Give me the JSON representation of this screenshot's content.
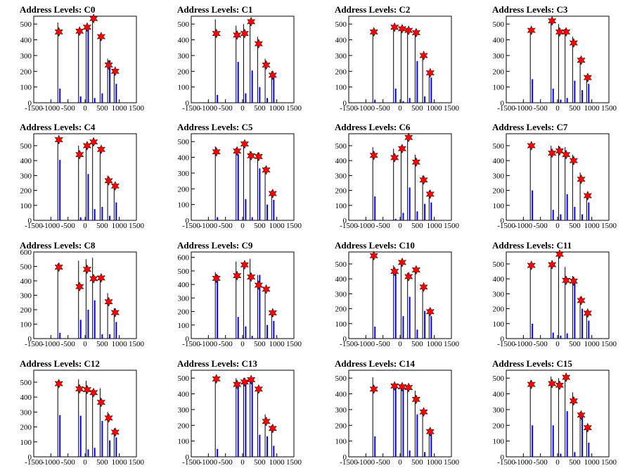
{
  "chart_data": [
    {
      "type": "bar",
      "title": "Address Levels: C0",
      "ylim": [
        0,
        550
      ],
      "yticks": [
        0,
        100,
        200,
        300,
        400,
        500
      ],
      "xlim": [
        -1500,
        1500
      ],
      "xticks": [
        -1500,
        -1000,
        -500,
        0,
        500,
        1000,
        1500
      ],
      "peaks": [
        {
          "x": -766,
          "black": 510,
          "blue": 90,
          "star": 450
        },
        {
          "x": -160,
          "black": 470,
          "blue": 40,
          "star": 455
        },
        {
          "x": 60,
          "black": 480,
          "blue": 470,
          "star": 480
        },
        {
          "x": 250,
          "black": 545,
          "blue": 30,
          "star": 535
        },
        {
          "x": 470,
          "black": 425,
          "blue": 60,
          "star": 420
        },
        {
          "x": 690,
          "black": 280,
          "blue": 270,
          "star": 240
        },
        {
          "x": 880,
          "black": 200,
          "blue": 120,
          "star": 200
        }
      ]
    },
    {
      "type": "bar",
      "title": "Address Levels: C1",
      "ylim": [
        0,
        550
      ],
      "yticks": [
        0,
        100,
        200,
        300,
        400,
        500
      ],
      "xlim": [
        -1500,
        1500
      ],
      "xticks": [
        -1500,
        -1000,
        -500,
        0,
        500,
        1000,
        1500
      ],
      "peaks": [
        {
          "x": -766,
          "black": 530,
          "blue": 50,
          "star": 440
        },
        {
          "x": -160,
          "black": 490,
          "blue": 260,
          "star": 430
        },
        {
          "x": 60,
          "black": 500,
          "blue": 60,
          "star": 440
        },
        {
          "x": 250,
          "black": 520,
          "blue": 205,
          "star": 515
        },
        {
          "x": 470,
          "black": 420,
          "blue": 100,
          "star": 375
        },
        {
          "x": 690,
          "black": 280,
          "blue": 30,
          "star": 240
        },
        {
          "x": 880,
          "black": 200,
          "blue": 170,
          "star": 175
        }
      ]
    },
    {
      "type": "bar",
      "title": "Address Levels: C2",
      "ylim": [
        0,
        550
      ],
      "yticks": [
        0,
        100,
        200,
        300,
        400,
        500
      ],
      "xlim": [
        -1500,
        1500
      ],
      "xticks": [
        -1500,
        -1000,
        -500,
        0,
        500,
        1000,
        1500
      ],
      "peaks": [
        {
          "x": -766,
          "black": 455,
          "blue": 20,
          "star": 450
        },
        {
          "x": -160,
          "black": 480,
          "blue": 90,
          "star": 480
        },
        {
          "x": 60,
          "black": 470,
          "blue": 10,
          "star": 470
        },
        {
          "x": 250,
          "black": 470,
          "blue": 30,
          "star": 460
        },
        {
          "x": 470,
          "black": 450,
          "blue": 265,
          "star": 445
        },
        {
          "x": 690,
          "black": 310,
          "blue": 40,
          "star": 300
        },
        {
          "x": 880,
          "black": 200,
          "blue": 160,
          "star": 190
        }
      ]
    },
    {
      "type": "bar",
      "title": "Address Levels: C3",
      "ylim": [
        0,
        550
      ],
      "yticks": [
        0,
        100,
        200,
        300,
        400,
        500
      ],
      "xlim": [
        -1500,
        1500
      ],
      "xticks": [
        -1500,
        -1000,
        -500,
        0,
        500,
        1000,
        1500
      ],
      "peaks": [
        {
          "x": -766,
          "black": 470,
          "blue": 150,
          "star": 460
        },
        {
          "x": -160,
          "black": 530,
          "blue": 90,
          "star": 520
        },
        {
          "x": 60,
          "black": 500,
          "blue": 20,
          "star": 450
        },
        {
          "x": 250,
          "black": 470,
          "blue": 30,
          "star": 450
        },
        {
          "x": 470,
          "black": 420,
          "blue": 140,
          "star": 380
        },
        {
          "x": 690,
          "black": 290,
          "blue": 80,
          "star": 270
        },
        {
          "x": 880,
          "black": 170,
          "blue": 120,
          "star": 160
        }
      ]
    },
    {
      "type": "bar",
      "title": "Address Levels: C4",
      "ylim": [
        0,
        580
      ],
      "yticks": [
        0,
        100,
        200,
        300,
        400,
        500
      ],
      "xlim": [
        -1500,
        1500
      ],
      "xticks": [
        -1500,
        -1000,
        -500,
        0,
        500,
        1000,
        1500
      ],
      "peaks": [
        {
          "x": -766,
          "black": 545,
          "blue": 405,
          "star": 540
        },
        {
          "x": -160,
          "black": 500,
          "blue": 20,
          "star": 440
        },
        {
          "x": 60,
          "black": 505,
          "blue": 310,
          "star": 500
        },
        {
          "x": 250,
          "black": 530,
          "blue": 75,
          "star": 525
        },
        {
          "x": 470,
          "black": 490,
          "blue": 90,
          "star": 475
        },
        {
          "x": 690,
          "black": 300,
          "blue": 30,
          "star": 265
        },
        {
          "x": 880,
          "black": 240,
          "blue": 120,
          "star": 230
        }
      ]
    },
    {
      "type": "bar",
      "title": "Address Levels: C5",
      "ylim": [
        0,
        550
      ],
      "yticks": [
        0,
        100,
        200,
        300,
        400,
        500
      ],
      "xlim": [
        -1500,
        1500
      ],
      "xticks": [
        -1500,
        -1000,
        -500,
        0,
        500,
        1000,
        1500
      ],
      "peaks": [
        {
          "x": -766,
          "black": 470,
          "blue": 20,
          "star": 435
        },
        {
          "x": -160,
          "black": 460,
          "blue": 420,
          "star": 440
        },
        {
          "x": 60,
          "black": 500,
          "blue": 135,
          "star": 485
        },
        {
          "x": 250,
          "black": 440,
          "blue": 20,
          "star": 410
        },
        {
          "x": 470,
          "black": 430,
          "blue": 330,
          "star": 405
        },
        {
          "x": 690,
          "black": 340,
          "blue": 100,
          "star": 320
        },
        {
          "x": 880,
          "black": 190,
          "blue": 130,
          "star": 170
        }
      ]
    },
    {
      "type": "bar",
      "title": "Address Levels: C6",
      "ylim": [
        0,
        580
      ],
      "yticks": [
        0,
        100,
        200,
        300,
        400,
        500
      ],
      "xlim": [
        -1500,
        1500
      ],
      "xticks": [
        -1500,
        -1000,
        -500,
        0,
        500,
        1000,
        1500
      ],
      "peaks": [
        {
          "x": -766,
          "black": 490,
          "blue": 160,
          "star": 435
        },
        {
          "x": -160,
          "black": 480,
          "blue": 10,
          "star": 420
        },
        {
          "x": 60,
          "black": 500,
          "blue": 50,
          "star": 480
        },
        {
          "x": 250,
          "black": 560,
          "blue": 220,
          "star": 555
        },
        {
          "x": 470,
          "black": 440,
          "blue": 60,
          "star": 390
        },
        {
          "x": 690,
          "black": 300,
          "blue": 110,
          "star": 270
        },
        {
          "x": 880,
          "black": 200,
          "blue": 120,
          "star": 175
        }
      ]
    },
    {
      "type": "bar",
      "title": "Address Levels: C7",
      "ylim": [
        0,
        580
      ],
      "yticks": [
        0,
        100,
        200,
        300,
        400,
        500
      ],
      "xlim": [
        -1500,
        1500
      ],
      "xticks": [
        -1500,
        -1000,
        -500,
        0,
        500,
        1000,
        1500
      ],
      "peaks": [
        {
          "x": -766,
          "black": 510,
          "blue": 200,
          "star": 500
        },
        {
          "x": -160,
          "black": 500,
          "blue": 70,
          "star": 450
        },
        {
          "x": 60,
          "black": 500,
          "blue": 40,
          "star": 465
        },
        {
          "x": 250,
          "black": 490,
          "blue": 175,
          "star": 440
        },
        {
          "x": 470,
          "black": 440,
          "blue": 90,
          "star": 400
        },
        {
          "x": 690,
          "black": 320,
          "blue": 40,
          "star": 275
        },
        {
          "x": 880,
          "black": 170,
          "blue": 120,
          "star": 165
        }
      ]
    },
    {
      "type": "bar",
      "title": "Address Levels: C8",
      "ylim": [
        0,
        600
      ],
      "yticks": [
        0,
        100,
        200,
        300,
        400,
        500,
        600
      ],
      "xlim": [
        -1500,
        1500
      ],
      "xticks": [
        -1500,
        -1000,
        -500,
        0,
        500,
        1000,
        1500
      ],
      "peaks": [
        {
          "x": -766,
          "black": 520,
          "blue": 40,
          "star": 495
        },
        {
          "x": -160,
          "black": 540,
          "blue": 130,
          "star": 360
        },
        {
          "x": 60,
          "black": 550,
          "blue": 200,
          "star": 480
        },
        {
          "x": 250,
          "black": 560,
          "blue": 265,
          "star": 415
        },
        {
          "x": 470,
          "black": 430,
          "blue": 30,
          "star": 420
        },
        {
          "x": 690,
          "black": 315,
          "blue": 30,
          "star": 255
        },
        {
          "x": 880,
          "black": 210,
          "blue": 115,
          "star": 180
        }
      ]
    },
    {
      "type": "bar",
      "title": "Address Levels: C9",
      "ylim": [
        0,
        640
      ],
      "yticks": [
        0,
        100,
        200,
        300,
        400,
        500,
        600
      ],
      "xlim": [
        -1500,
        1500
      ],
      "xticks": [
        -1500,
        -1000,
        -500,
        0,
        500,
        1000,
        1500
      ],
      "peaks": [
        {
          "x": -766,
          "black": 490,
          "blue": 470,
          "star": 445
        },
        {
          "x": -160,
          "black": 570,
          "blue": 160,
          "star": 465
        },
        {
          "x": 60,
          "black": 560,
          "blue": 90,
          "star": 545
        },
        {
          "x": 250,
          "black": 590,
          "blue": 20,
          "star": 455
        },
        {
          "x": 470,
          "black": 470,
          "blue": 470,
          "star": 395
        },
        {
          "x": 690,
          "black": 370,
          "blue": 100,
          "star": 365
        },
        {
          "x": 880,
          "black": 200,
          "blue": 130,
          "star": 190
        }
      ]
    },
    {
      "type": "bar",
      "title": "Address Levels: C10",
      "ylim": [
        0,
        580
      ],
      "yticks": [
        0,
        100,
        200,
        300,
        400,
        500
      ],
      "xlim": [
        -1500,
        1500
      ],
      "xticks": [
        -1500,
        -1000,
        -500,
        0,
        500,
        1000,
        1500
      ],
      "peaks": [
        {
          "x": -766,
          "black": 560,
          "blue": 80,
          "star": 555
        },
        {
          "x": -160,
          "black": 490,
          "blue": 460,
          "star": 450
        },
        {
          "x": 60,
          "black": 510,
          "blue": 150,
          "star": 510
        },
        {
          "x": 250,
          "black": 440,
          "blue": 280,
          "star": 415
        },
        {
          "x": 470,
          "black": 470,
          "blue": 60,
          "star": 460
        },
        {
          "x": 690,
          "black": 360,
          "blue": 185,
          "star": 345
        },
        {
          "x": 880,
          "black": 200,
          "blue": 150,
          "star": 180
        }
      ]
    },
    {
      "type": "bar",
      "title": "Address Levels: C11",
      "ylim": [
        0,
        580
      ],
      "yticks": [
        0,
        100,
        200,
        300,
        400,
        500
      ],
      "xlim": [
        -1500,
        1500
      ],
      "xticks": [
        -1500,
        -1000,
        -500,
        0,
        500,
        1000,
        1500
      ],
      "peaks": [
        {
          "x": -766,
          "black": 500,
          "blue": 100,
          "star": 490
        },
        {
          "x": -160,
          "black": 510,
          "blue": 40,
          "star": 495
        },
        {
          "x": 60,
          "black": 580,
          "blue": 20,
          "star": 565
        },
        {
          "x": 250,
          "black": 480,
          "blue": 35,
          "star": 390
        },
        {
          "x": 470,
          "black": 420,
          "blue": 400,
          "star": 385
        },
        {
          "x": 690,
          "black": 280,
          "blue": 200,
          "star": 255
        },
        {
          "x": 880,
          "black": 190,
          "blue": 120,
          "star": 170
        }
      ]
    },
    {
      "type": "bar",
      "title": "Address Levels: C12",
      "ylim": [
        0,
        580
      ],
      "yticks": [
        0,
        100,
        200,
        300,
        400,
        500
      ],
      "xlim": [
        -1500,
        1500
      ],
      "xticks": [
        -1500,
        -1000,
        -500,
        0,
        500,
        1000,
        1500
      ],
      "peaks": [
        {
          "x": -766,
          "black": 510,
          "blue": 280,
          "star": 490
        },
        {
          "x": -160,
          "black": 520,
          "blue": 275,
          "star": 455
        },
        {
          "x": 60,
          "black": 510,
          "blue": 50,
          "star": 450
        },
        {
          "x": 250,
          "black": 450,
          "blue": 60,
          "star": 430
        },
        {
          "x": 470,
          "black": 460,
          "blue": 240,
          "star": 365
        },
        {
          "x": 690,
          "black": 300,
          "blue": 110,
          "star": 260
        },
        {
          "x": 880,
          "black": 190,
          "blue": 130,
          "star": 165
        }
      ]
    },
    {
      "type": "bar",
      "title": "Address Levels: C13",
      "ylim": [
        0,
        550
      ],
      "yticks": [
        0,
        100,
        200,
        300,
        400,
        500
      ],
      "xlim": [
        -1500,
        1500
      ],
      "xticks": [
        -1500,
        -1000,
        -500,
        0,
        500,
        1000,
        1500
      ],
      "peaks": [
        {
          "x": -766,
          "black": 510,
          "blue": 50,
          "star": 495
        },
        {
          "x": -160,
          "black": 500,
          "blue": 460,
          "star": 460
        },
        {
          "x": 60,
          "black": 500,
          "blue": 470,
          "star": 475
        },
        {
          "x": 250,
          "black": 500,
          "blue": 480,
          "star": 490
        },
        {
          "x": 470,
          "black": 445,
          "blue": 140,
          "star": 430
        },
        {
          "x": 690,
          "black": 270,
          "blue": 130,
          "star": 225
        },
        {
          "x": 880,
          "black": 200,
          "blue": 70,
          "star": 180
        }
      ]
    },
    {
      "type": "bar",
      "title": "Address Levels: C14",
      "ylim": [
        0,
        550
      ],
      "yticks": [
        0,
        100,
        200,
        300,
        400,
        500
      ],
      "xlim": [
        -1500,
        1500
      ],
      "xticks": [
        -1500,
        -1000,
        -500,
        0,
        500,
        1000,
        1500
      ],
      "peaks": [
        {
          "x": -766,
          "black": 505,
          "blue": 130,
          "star": 430
        },
        {
          "x": -160,
          "black": 460,
          "blue": 450,
          "star": 450
        },
        {
          "x": 60,
          "black": 460,
          "blue": 445,
          "star": 445
        },
        {
          "x": 250,
          "black": 455,
          "blue": 40,
          "star": 440
        },
        {
          "x": 470,
          "black": 420,
          "blue": 270,
          "star": 365
        },
        {
          "x": 690,
          "black": 300,
          "blue": 30,
          "star": 285
        },
        {
          "x": 880,
          "black": 180,
          "blue": 150,
          "star": 160
        }
      ]
    },
    {
      "type": "bar",
      "title": "Address Levels: C15",
      "ylim": [
        0,
        550
      ],
      "yticks": [
        0,
        100,
        200,
        300,
        400,
        500
      ],
      "xlim": [
        -1500,
        1500
      ],
      "xticks": [
        -1500,
        -1000,
        -500,
        0,
        500,
        1000,
        1500
      ],
      "peaks": [
        {
          "x": -766,
          "black": 485,
          "blue": 200,
          "star": 460
        },
        {
          "x": -160,
          "black": 510,
          "blue": 200,
          "star": 465
        },
        {
          "x": 60,
          "black": 500,
          "blue": 20,
          "star": 455
        },
        {
          "x": 250,
          "black": 520,
          "blue": 290,
          "star": 505
        },
        {
          "x": 470,
          "black": 410,
          "blue": 30,
          "star": 355
        },
        {
          "x": 690,
          "black": 285,
          "blue": 270,
          "star": 265
        },
        {
          "x": 880,
          "black": 200,
          "blue": 90,
          "star": 185
        }
      ]
    }
  ]
}
